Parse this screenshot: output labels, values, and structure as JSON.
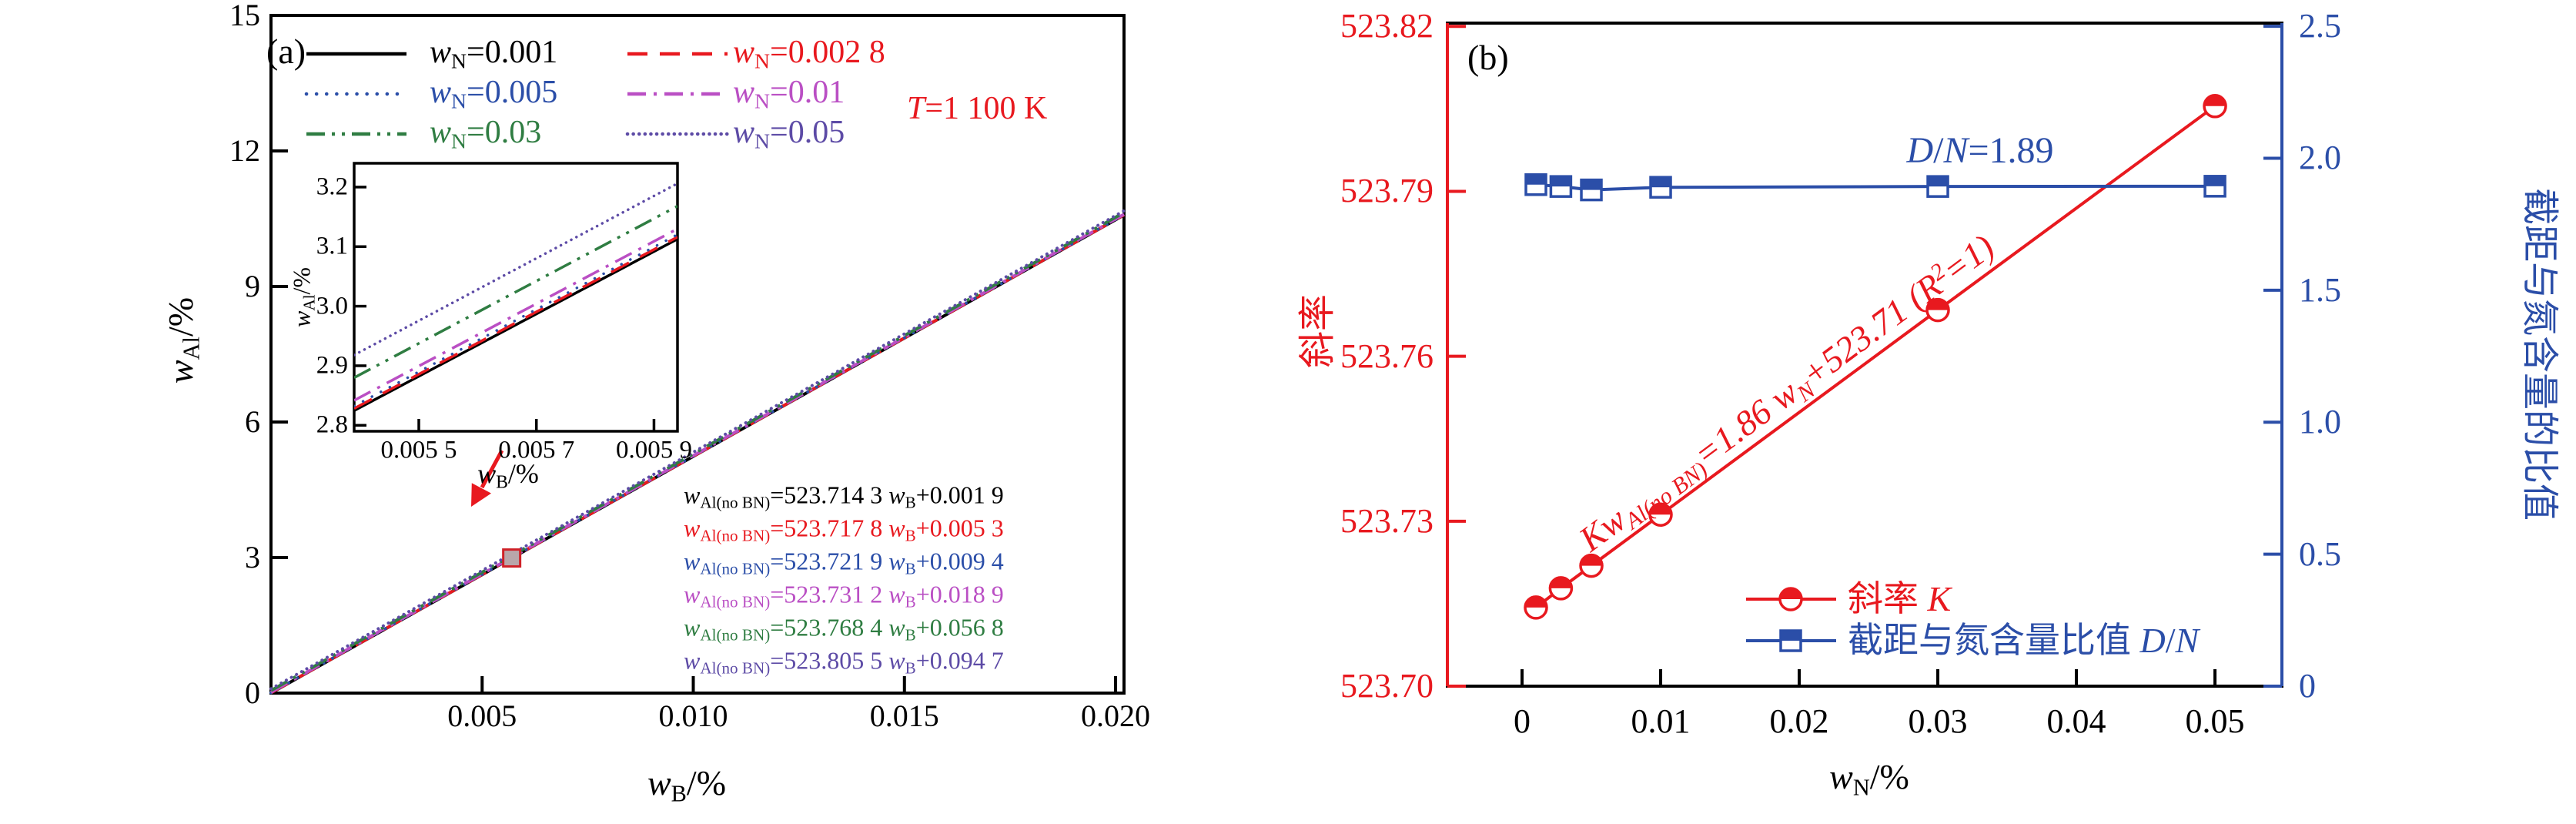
{
  "figure": {
    "background": "#ffffff"
  },
  "chart_data": [
    {
      "type": "line",
      "panel_tag": "(a)",
      "condition_label": "*T*=1 100 K",
      "condition_color": "#e8191f",
      "xlabel": "*w*_{B}/%",
      "ylabel": "*w*_{Al}/%",
      "xlim": [
        0,
        0.0202
      ],
      "ylim": [
        0,
        15
      ],
      "grid": false,
      "legend_position": "top-left-two-columns",
      "x_ticks": [
        {
          "v": 0.005,
          "label": "0.005"
        },
        {
          "v": 0.01,
          "label": "0.010"
        },
        {
          "v": 0.015,
          "label": "0.015"
        },
        {
          "v": 0.02,
          "label": "0.020"
        }
      ],
      "y_ticks": [
        {
          "v": 0,
          "label": "0"
        },
        {
          "v": 3,
          "label": "3"
        },
        {
          "v": 6,
          "label": "6"
        },
        {
          "v": 9,
          "label": "9"
        },
        {
          "v": 12,
          "label": "12"
        },
        {
          "v": 15,
          "label": "15"
        }
      ],
      "series": [
        {
          "name": "*w*_{N}=0.001",
          "w_N": 0.001,
          "color": "#000000",
          "line_style": "solid",
          "slope": 523.7143,
          "intercept": 0.0019,
          "fit_equation": "*w*_{Al(no BN)}=523.714 3 *w*_{B}+0.001 9"
        },
        {
          "name": "*w*_{N}=0.002 8",
          "w_N": 0.0028,
          "color": "#e8191f",
          "line_style": "dashed",
          "slope": 523.7178,
          "intercept": 0.0053,
          "fit_equation": "*w*_{Al(no BN)}=523.717 8 *w*_{B}+0.005 3"
        },
        {
          "name": "*w*_{N}=0.005",
          "w_N": 0.005,
          "color": "#2b4ea8",
          "line_style": "dotted",
          "slope": 523.7219,
          "intercept": 0.0094,
          "fit_equation": "*w*_{Al(no BN)}=523.721 9 *w*_{B}+0.009 4"
        },
        {
          "name": "*w*_{N}=0.01",
          "w_N": 0.01,
          "color": "#ba4fc4",
          "line_style": "dashdot",
          "slope": 523.7312,
          "intercept": 0.0189,
          "fit_equation": "*w*_{Al(no BN)}=523.731 2 *w*_{B}+0.018 9"
        },
        {
          "name": "*w*_{N}=0.03",
          "w_N": 0.03,
          "color": "#2f7d42",
          "line_style": "dashdotdot",
          "slope": 523.7684,
          "intercept": 0.0568,
          "fit_equation": "*w*_{Al(no BN)}=523.768 4 *w*_{B}+0.056 8"
        },
        {
          "name": "*w*_{N}=0.05",
          "w_N": 0.05,
          "color": "#5d4ba6",
          "line_style": "densedot",
          "slope": 523.8055,
          "intercept": 0.0947,
          "fit_equation": "*w*_{Al(no BN)}=523.805 5 *w*_{B}+0.094 7"
        }
      ],
      "inset": {
        "xlabel": "*w*_{B}/%",
        "ylabel": "*w*_{Al}/%",
        "xlim": [
          0.00539,
          0.00594
        ],
        "ylim": [
          2.79,
          3.24
        ],
        "x_ticks": [
          {
            "v": 0.0055,
            "label": "0.005 5"
          },
          {
            "v": 0.0057,
            "label": "0.005 7"
          },
          {
            "v": 0.0059,
            "label": "0.005 9"
          }
        ],
        "y_ticks": [
          {
            "v": 2.8,
            "label": "2.8"
          },
          {
            "v": 2.9,
            "label": "2.9"
          },
          {
            "v": 3.0,
            "label": "3.0"
          },
          {
            "v": 3.1,
            "label": "3.1"
          },
          {
            "v": 3.2,
            "label": "3.2"
          }
        ]
      },
      "zoom_marker": {
        "x": 0.0057,
        "y": 2.99
      }
    },
    {
      "type": "line",
      "panel_tag": "(b)",
      "xlabel": "*w*_{N}/%",
      "ylabel_left": "斜率",
      "ylabel_right": "截距与氮含量的比值",
      "axis_color_left": "#e8191f",
      "axis_color_right": "#2b4ea8",
      "xlim": [
        -0.00539,
        0.05483
      ],
      "ylim_left": [
        523.7,
        523.8206
      ],
      "ylim_right": [
        0,
        2.512
      ],
      "grid": false,
      "legend_position": "lower-right",
      "x_ticks": [
        {
          "v": 0,
          "label": "0"
        },
        {
          "v": 0.01,
          "label": "0.01"
        },
        {
          "v": 0.02,
          "label": "0.02"
        },
        {
          "v": 0.03,
          "label": "0.03"
        },
        {
          "v": 0.04,
          "label": "0.04"
        },
        {
          "v": 0.05,
          "label": "0.05"
        }
      ],
      "left_ticks": [
        {
          "v": 523.7,
          "label": "523.70"
        },
        {
          "v": 523.73,
          "label": "523.73"
        },
        {
          "v": 523.76,
          "label": "523.76"
        },
        {
          "v": 523.79,
          "label": "523.79"
        },
        {
          "v": 523.82,
          "label": "523.82"
        }
      ],
      "right_ticks": [
        {
          "v": 0,
          "label": "0"
        },
        {
          "v": 0.5,
          "label": "0.5"
        },
        {
          "v": 1.0,
          "label": "1.0"
        },
        {
          "v": 1.5,
          "label": "1.5"
        },
        {
          "v": 2.0,
          "label": "2.0"
        },
        {
          "v": 2.5,
          "label": "2.5"
        }
      ],
      "series": [
        {
          "name": "斜率 *K*",
          "axis": "left",
          "color": "#e8191f",
          "marker": "half-circle",
          "x": [
            0.001,
            0.0028,
            0.005,
            0.01,
            0.03,
            0.05
          ],
          "y": [
            523.7143,
            523.7178,
            523.7219,
            523.7312,
            523.7684,
            523.8055
          ]
        },
        {
          "name": "截距与氮含量比值 *D*/*N*",
          "axis": "right",
          "color": "#2b4ea8",
          "marker": "half-square",
          "x": [
            0.001,
            0.0028,
            0.005,
            0.01,
            0.03,
            0.05
          ],
          "y": [
            1.9,
            1.893,
            1.88,
            1.89,
            1.893,
            1.894
          ]
        }
      ],
      "annotations": {
        "fit_line": "*Kw*_{Al(no BN)}=1.86 *w*_{N}+523.71 (*R*^{2}=1)",
        "fit_line_color": "#e8191f",
        "dn_ratio": "*D*/*N*=1.89",
        "dn_ratio_color": "#2b4ea8"
      }
    }
  ]
}
